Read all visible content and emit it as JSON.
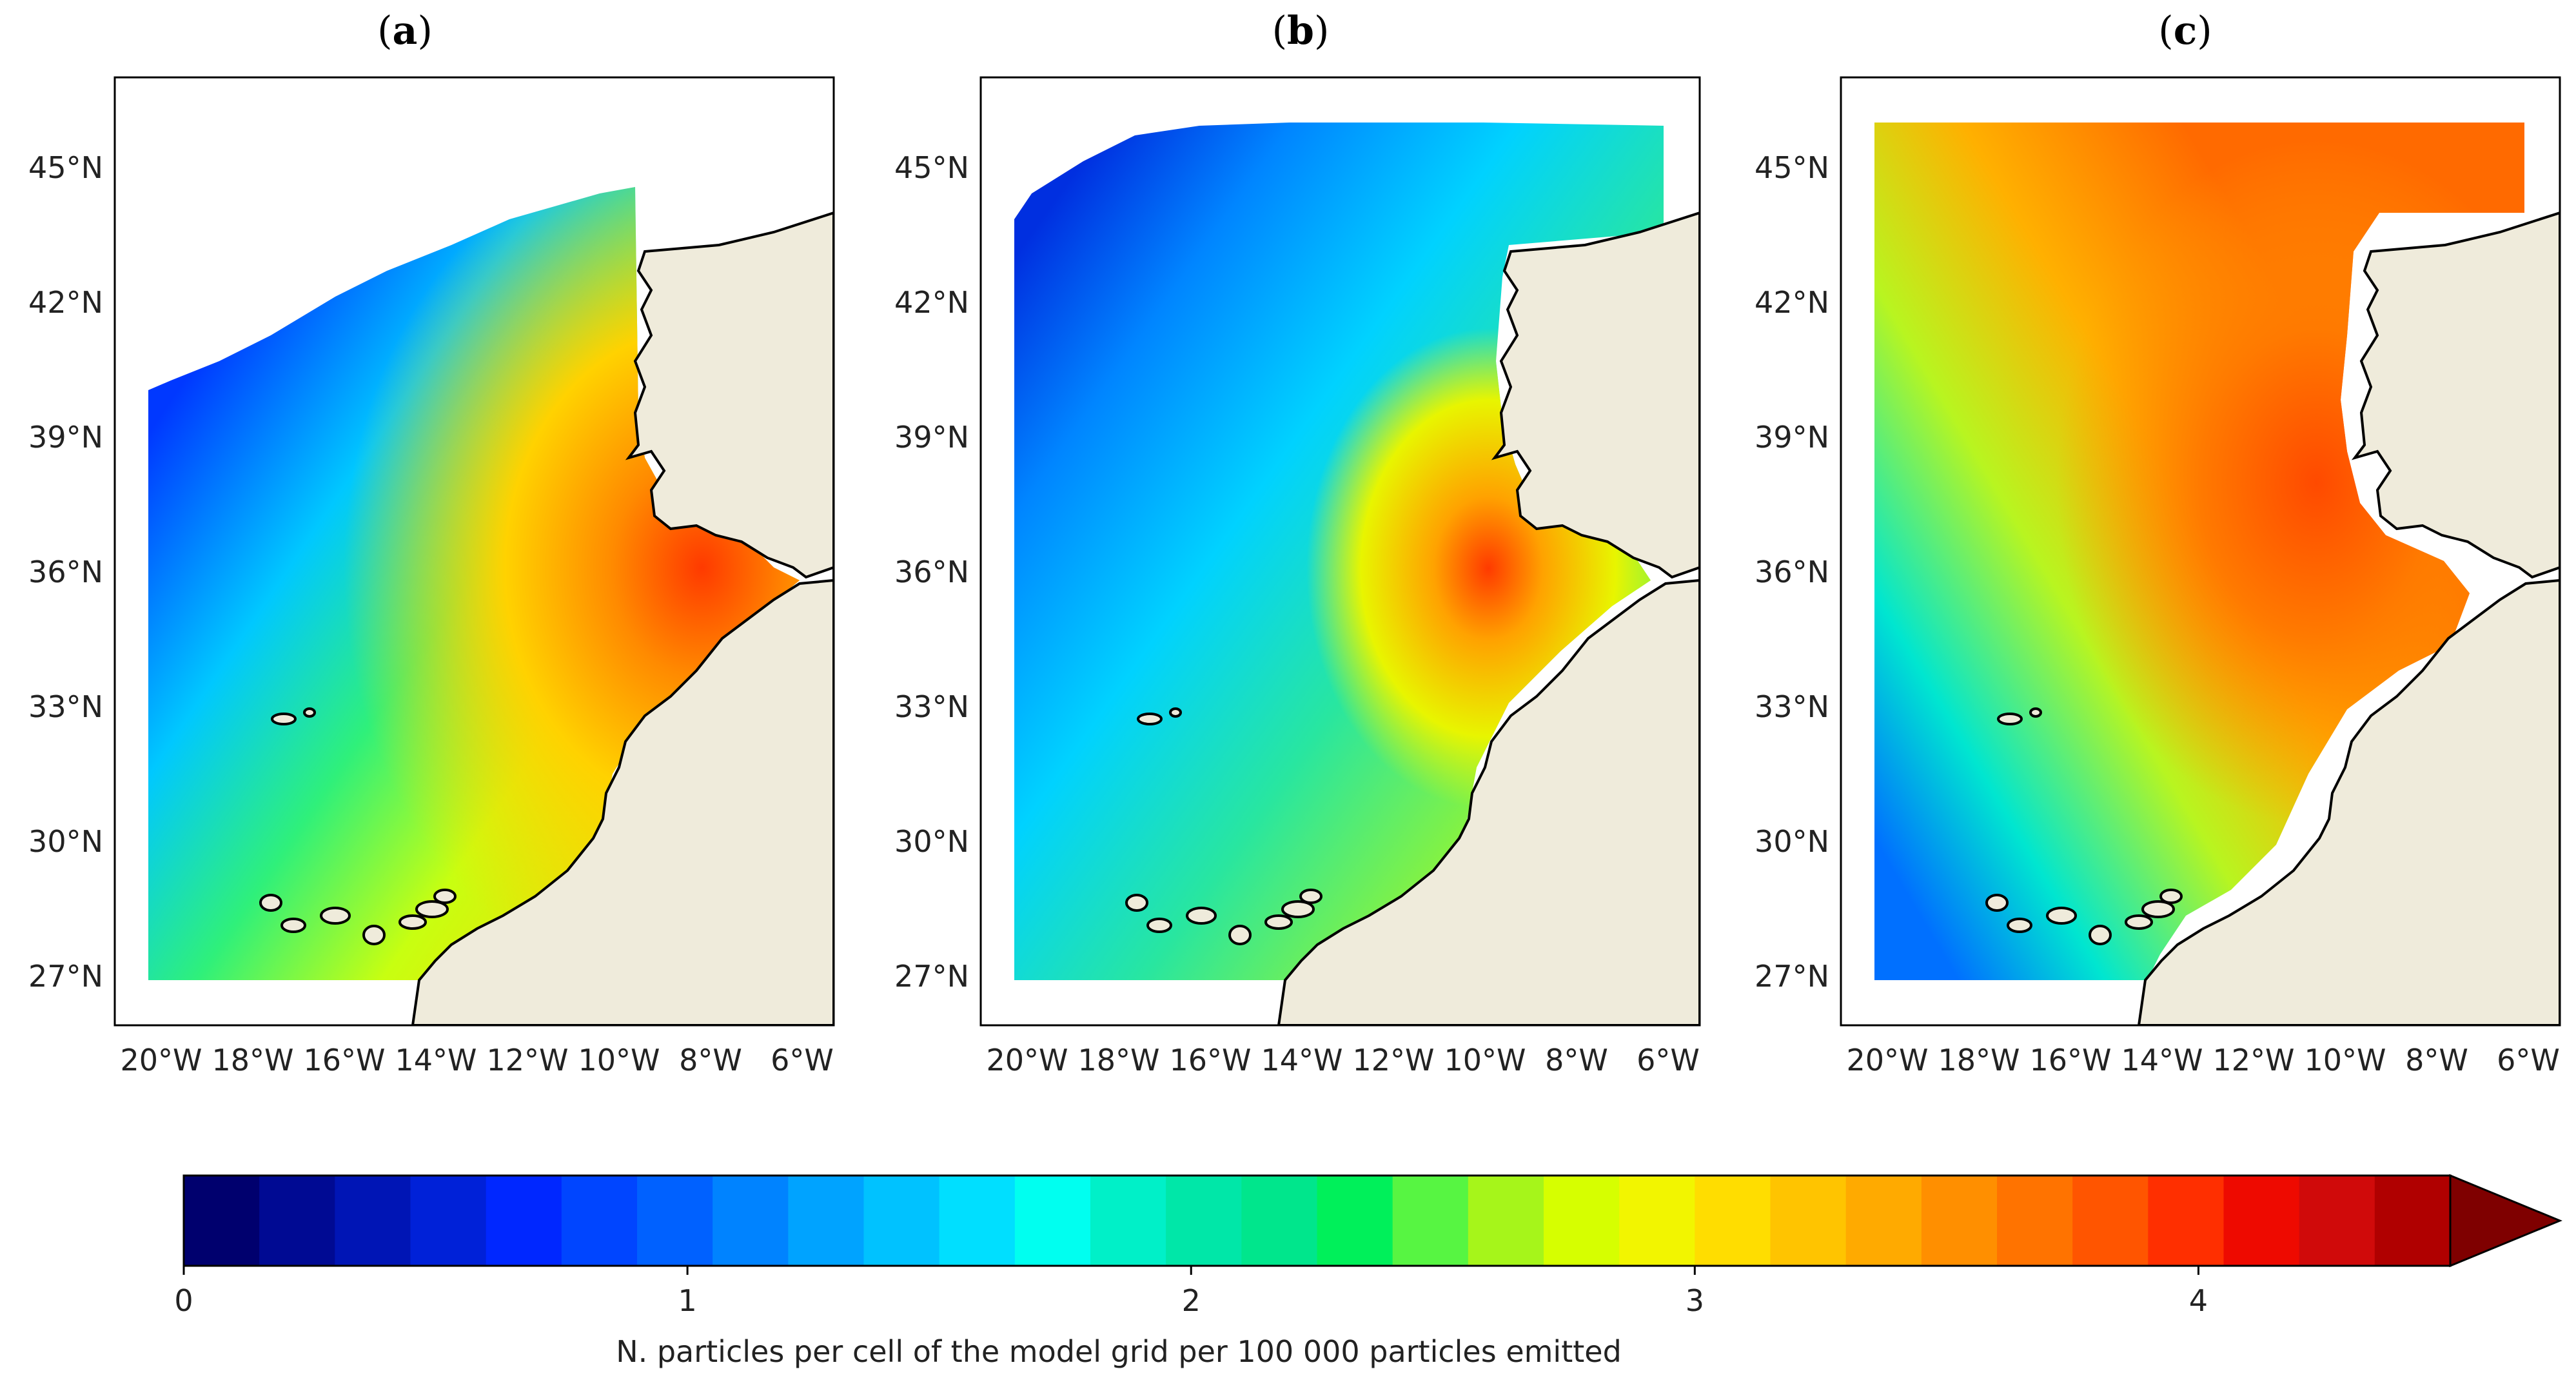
{
  "figure": {
    "panels": [
      {
        "label_open": "(",
        "label_letter": "a",
        "label_close": ")"
      },
      {
        "label_open": "(",
        "label_letter": "b",
        "label_close": ")"
      },
      {
        "label_open": "(",
        "label_letter": "c",
        "label_close": ")"
      }
    ],
    "lat_ticks": [
      "45°N",
      "42°N",
      "39°N",
      "36°N",
      "33°N",
      "30°N",
      "27°N"
    ],
    "lon_ticks": [
      "20°W",
      "18°W",
      "16°W",
      "14°W",
      "12°W",
      "10°W",
      "8°W",
      "6°W"
    ],
    "colorbar": {
      "ticks": [
        "0",
        "1",
        "2",
        "3",
        "4"
      ],
      "label": "N. particles per cell of the model grid per 100 000 particles emitted",
      "levels": [
        0,
        0.15,
        0.3,
        0.45,
        0.6,
        0.75,
        0.9,
        1.05,
        1.2,
        1.35,
        1.5,
        1.65,
        1.8,
        1.95,
        2.1,
        2.25,
        2.4,
        2.55,
        2.7,
        2.85,
        3.0,
        3.15,
        3.3,
        3.45,
        3.6,
        3.75,
        3.9,
        4.05,
        4.2,
        4.35,
        4.5
      ],
      "colors": [
        "#00006e",
        "#000a93",
        "#0015b5",
        "#0021d8",
        "#0027ff",
        "#0045ff",
        "#0061ff",
        "#0083ff",
        "#00a3ff",
        "#00c2ff",
        "#00dfff",
        "#00fff0",
        "#00f0c8",
        "#00e7a8",
        "#00e68c",
        "#00f05a",
        "#57f542",
        "#a6f51a",
        "#d6ff00",
        "#f2f500",
        "#ffdd00",
        "#ffc400",
        "#ffaa00",
        "#ff8f00",
        "#ff7300",
        "#ff5500",
        "#ff2f00",
        "#ee0a00",
        "#d00a0a",
        "#b00000",
        "#7f0000"
      ],
      "extend": "max"
    },
    "land_color": "#efebdb"
  }
}
